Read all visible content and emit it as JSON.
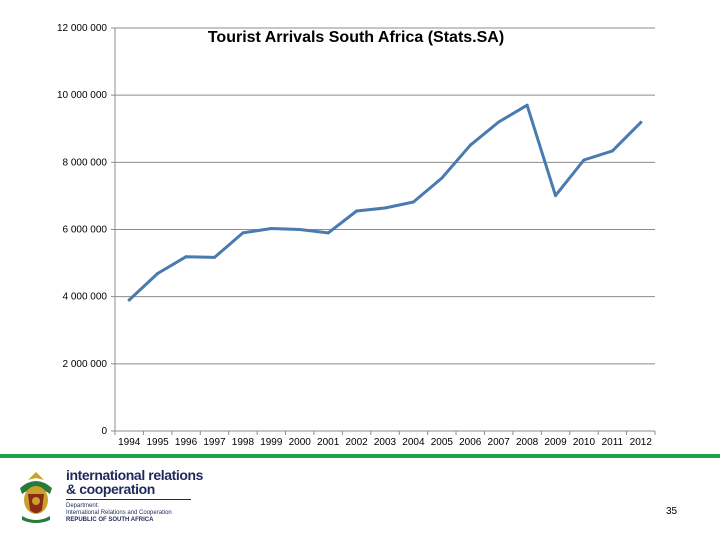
{
  "chart_data": {
    "type": "line",
    "title": "Tourist Arrivals South Africa (Stats.SA)",
    "xlabel": "",
    "ylabel": "",
    "categories": [
      "1994",
      "1995",
      "1996",
      "1997",
      "1998",
      "1999",
      "2000",
      "2001",
      "2002",
      "2003",
      "2004",
      "2005",
      "2006",
      "2007",
      "2008",
      "2009",
      "2010",
      "2011",
      "2012"
    ],
    "series": [
      {
        "values": [
          3900000,
          4690000,
          5190000,
          5170000,
          5900000,
          6030000,
          6000000,
          5900000,
          6550000,
          6640000,
          6820000,
          7530000,
          8510000,
          9200000,
          9700000,
          7010000,
          8070000,
          8340000,
          9190000
        ]
      }
    ],
    "ylim": [
      0,
      12000000
    ],
    "yticks": [
      0,
      2000000,
      4000000,
      6000000,
      8000000,
      10000000,
      12000000
    ],
    "ytick_labels": [
      "0",
      "2 000 000",
      "4 000 000",
      "6 000 000",
      "8 000 000",
      "10 000 000",
      "12 000 000"
    ],
    "grid": true,
    "legend": "none",
    "line_color": "#4a7ab0"
  },
  "footer": {
    "brand_line1": "international relations",
    "brand_line2": "& cooperation",
    "dept_lines": [
      "Department:",
      "International Relations and Cooperation"
    ],
    "country": "REPUBLIC OF SOUTH AFRICA",
    "page_number": "35"
  },
  "colors": {
    "accent_bar": "#1aa34a",
    "brand": "#1f2a5a"
  }
}
